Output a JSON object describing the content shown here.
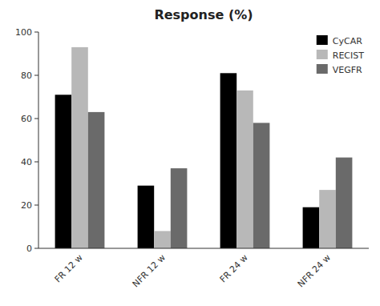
{
  "chart_data": {
    "type": "bar",
    "title": "Response (%)",
    "categories": [
      "FR 12 w",
      "NFR 12 w",
      "FR 24 w",
      "NFR 24 w"
    ],
    "series": [
      {
        "name": "CyCAR",
        "color": "#000000",
        "values": [
          71,
          29,
          81,
          19
        ]
      },
      {
        "name": "RECIST",
        "color": "#b8b8b8",
        "values": [
          93,
          8,
          73,
          27
        ]
      },
      {
        "name": "VEGFR",
        "color": "#6a6a6a",
        "values": [
          63,
          37,
          58,
          42
        ]
      }
    ],
    "ylim": [
      0,
      100
    ],
    "yticks": [
      0,
      20,
      40,
      60,
      80,
      100
    ],
    "grid": false,
    "legend": "upper right"
  }
}
